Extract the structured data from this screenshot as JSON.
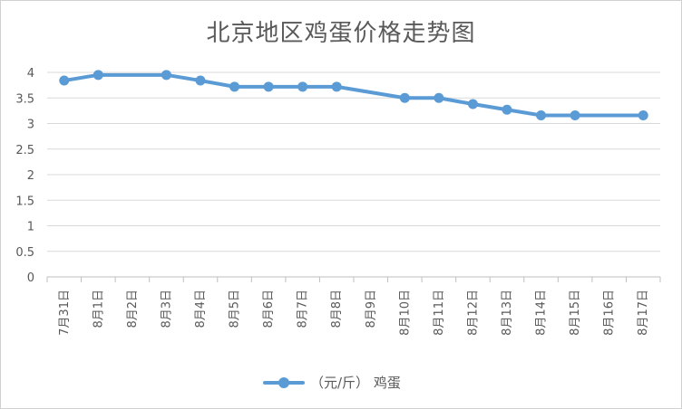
{
  "chart_data": {
    "type": "line",
    "title": "北京地区鸡蛋价格走势图",
    "categories": [
      "7月31日",
      "8月1日",
      "8月2日",
      "8月3日",
      "8月4日",
      "8月5日",
      "8月6日",
      "8月7日",
      "8月8日",
      "8月9日",
      "8月10日",
      "8月11日",
      "8月12日",
      "8月13日",
      "8月14日",
      "8月15日",
      "8月16日",
      "8月17日"
    ],
    "series": [
      {
        "name": "（元/斤） 鸡蛋",
        "color": "#5b9bd5",
        "values": [
          3.84,
          3.95,
          null,
          3.95,
          3.84,
          3.72,
          3.72,
          3.72,
          3.72,
          null,
          3.5,
          3.5,
          3.38,
          3.27,
          3.16,
          3.16,
          null,
          3.16
        ]
      }
    ],
    "ylim": [
      0,
      4
    ],
    "yticks": [
      "0",
      "0.5",
      "1",
      "1.5",
      "2",
      "2.5",
      "3",
      "3.5",
      "4"
    ],
    "ytick_values": [
      0,
      0.5,
      1,
      1.5,
      2,
      2.5,
      3,
      3.5,
      4
    ],
    "grid": true,
    "legend": "bottom"
  }
}
